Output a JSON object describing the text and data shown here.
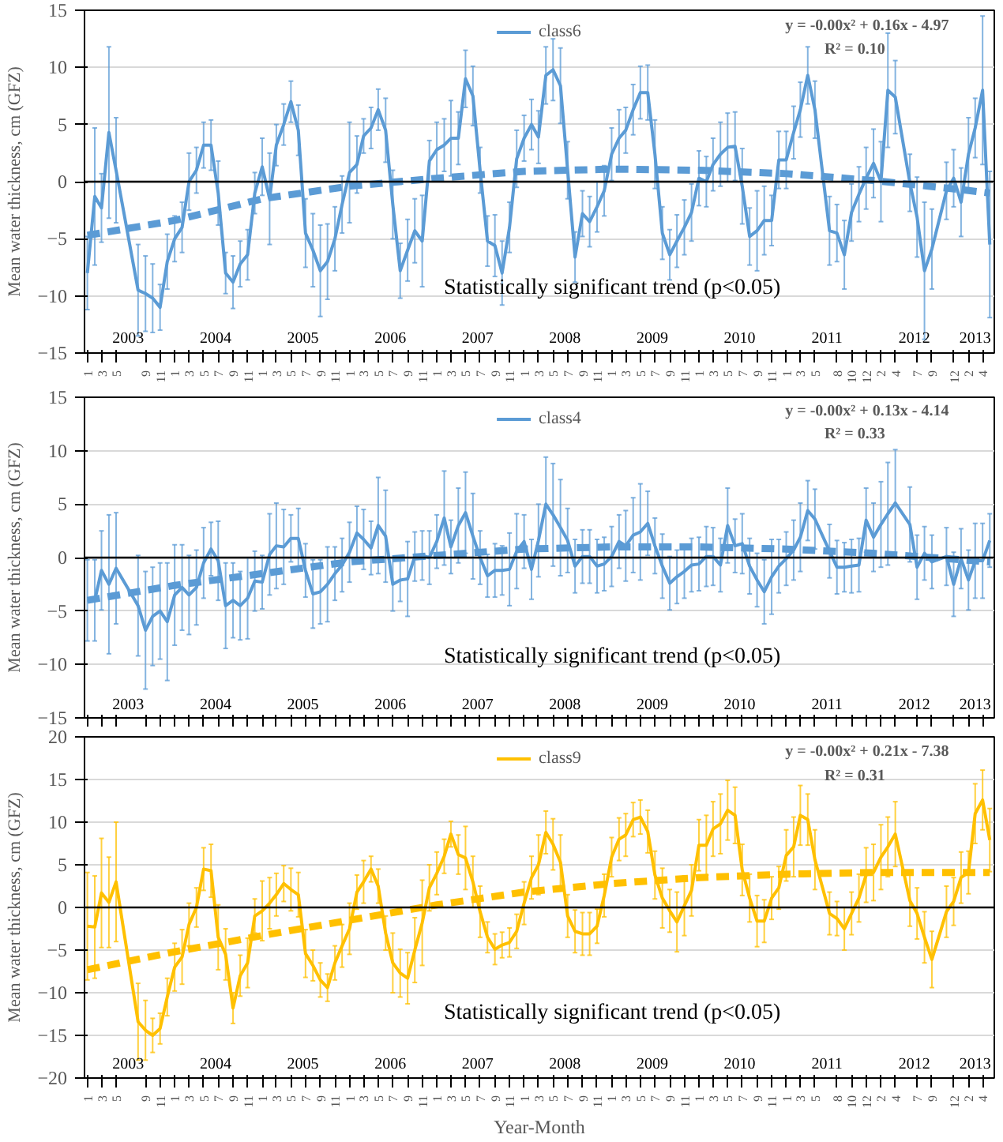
{
  "chart_data": [
    {
      "type": "line",
      "ylabel": "Mean water thickness, cm (GFZ)",
      "xlim": [
        "2002-12-20",
        "2013-05-20"
      ],
      "ylim": [
        -15,
        15
      ],
      "yticks": [
        -15,
        -10,
        -5,
        0,
        5,
        10,
        15
      ],
      "grid": "y",
      "legend": "top",
      "x": [
        "2003-01",
        "2003-02",
        "2003-03",
        "2003-04",
        "2003-05",
        "2003-08",
        "2003-09",
        "2003-10",
        "2003-11",
        "2003-12",
        "2004-01",
        "2004-02",
        "2004-03",
        "2004-04",
        "2004-05",
        "2004-06",
        "2004-07",
        "2004-08",
        "2004-09",
        "2004-10",
        "2004-11",
        "2004-12",
        "2005-01",
        "2005-02",
        "2005-03",
        "2005-04",
        "2005-05",
        "2005-06",
        "2005-07",
        "2005-08",
        "2005-09",
        "2005-10",
        "2005-11",
        "2005-12",
        "2006-01",
        "2006-02",
        "2006-03",
        "2006-04",
        "2006-05",
        "2006-06",
        "2006-07",
        "2006-08",
        "2006-09",
        "2006-10",
        "2006-11",
        "2006-12",
        "2007-01",
        "2007-02",
        "2007-03",
        "2007-04",
        "2007-05",
        "2007-06",
        "2007-07",
        "2007-08",
        "2007-09",
        "2007-10",
        "2007-11",
        "2007-12",
        "2008-01",
        "2008-02",
        "2008-03",
        "2008-04",
        "2008-05",
        "2008-06",
        "2008-07",
        "2008-08",
        "2008-09",
        "2008-10",
        "2008-11",
        "2008-12",
        "2009-01",
        "2009-02",
        "2009-03",
        "2009-04",
        "2009-05",
        "2009-06",
        "2009-07",
        "2009-08",
        "2009-09",
        "2009-10",
        "2009-11",
        "2009-12",
        "2010-01",
        "2010-02",
        "2010-03",
        "2010-04",
        "2010-05",
        "2010-06",
        "2010-07",
        "2010-08",
        "2010-09",
        "2010-10",
        "2010-11",
        "2010-12",
        "2011-01",
        "2011-02",
        "2011-03",
        "2011-04",
        "2011-05",
        "2011-07",
        "2011-08",
        "2011-09",
        "2011-10",
        "2011-11",
        "2011-12",
        "2012-01",
        "2012-02",
        "2012-03",
        "2012-04",
        "2012-06",
        "2012-07",
        "2012-08",
        "2012-09",
        "2012-11",
        "2012-12",
        "2013-01",
        "2013-02",
        "2013-03",
        "2013-04",
        "2013-05"
      ],
      "xticks": [
        {
          "value": "2003-01",
          "label": "1"
        },
        {
          "value": "2003-03",
          "label": "3"
        },
        {
          "value": "2003-05",
          "label": "5"
        },
        {
          "value": "2003-09",
          "label": "9"
        },
        {
          "value": "2003-11",
          "label": "11"
        },
        {
          "value": "2004-01",
          "label": "1"
        },
        {
          "value": "2004-03",
          "label": "3"
        },
        {
          "value": "2004-05",
          "label": "5"
        },
        {
          "value": "2004-07",
          "label": "7"
        },
        {
          "value": "2004-09",
          "label": "9"
        },
        {
          "value": "2004-11",
          "label": "11"
        },
        {
          "value": "2005-01",
          "label": "1"
        },
        {
          "value": "2005-03",
          "label": "3"
        },
        {
          "value": "2005-05",
          "label": "5"
        },
        {
          "value": "2005-07",
          "label": "7"
        },
        {
          "value": "2005-09",
          "label": "9"
        },
        {
          "value": "2005-11",
          "label": "11"
        },
        {
          "value": "2006-01",
          "label": "1"
        },
        {
          "value": "2006-03",
          "label": "3"
        },
        {
          "value": "2006-05",
          "label": "5"
        },
        {
          "value": "2006-07",
          "label": "7"
        },
        {
          "value": "2006-09",
          "label": "9"
        },
        {
          "value": "2006-11",
          "label": "11"
        },
        {
          "value": "2007-01",
          "label": "1"
        },
        {
          "value": "2007-03",
          "label": "3"
        },
        {
          "value": "2007-05",
          "label": "5"
        },
        {
          "value": "2007-07",
          "label": "7"
        },
        {
          "value": "2007-09",
          "label": "9"
        },
        {
          "value": "2007-11",
          "label": "11"
        },
        {
          "value": "2008-01",
          "label": "1"
        },
        {
          "value": "2008-03",
          "label": "3"
        },
        {
          "value": "2008-05",
          "label": "5"
        },
        {
          "value": "2008-07",
          "label": "7"
        },
        {
          "value": "2008-09",
          "label": "9"
        },
        {
          "value": "2008-11",
          "label": "11"
        },
        {
          "value": "2009-01",
          "label": "1"
        },
        {
          "value": "2009-03",
          "label": "3"
        },
        {
          "value": "2009-05",
          "label": "5"
        },
        {
          "value": "2009-07",
          "label": "7"
        },
        {
          "value": "2009-09",
          "label": "9"
        },
        {
          "value": "2009-11",
          "label": "11"
        },
        {
          "value": "2010-01",
          "label": "1"
        },
        {
          "value": "2010-03",
          "label": "3"
        },
        {
          "value": "2010-05",
          "label": "5"
        },
        {
          "value": "2010-07",
          "label": "7"
        },
        {
          "value": "2010-09",
          "label": "9"
        },
        {
          "value": "2010-11",
          "label": "11"
        },
        {
          "value": "2011-01",
          "label": "1"
        },
        {
          "value": "2011-03",
          "label": "3"
        },
        {
          "value": "2011-05",
          "label": "5"
        },
        {
          "value": "2011-08",
          "label": "8"
        },
        {
          "value": "2011-10",
          "label": "10"
        },
        {
          "value": "2011-12",
          "label": "12"
        },
        {
          "value": "2012-02",
          "label": "2"
        },
        {
          "value": "2012-04",
          "label": "4"
        },
        {
          "value": "2012-07",
          "label": "7"
        },
        {
          "value": "2012-09",
          "label": "9"
        },
        {
          "value": "2012-12",
          "label": "12"
        },
        {
          "value": "2013-02",
          "label": "2"
        },
        {
          "value": "2013-04",
          "label": "4"
        }
      ],
      "series": [
        {
          "name": "class6",
          "color": "#5b9bd5",
          "line_style": "solid",
          "values": [
            -8,
            -1.3,
            -2.3,
            4.3,
            1,
            -9.5,
            -9.8,
            -10.2,
            -11,
            -7,
            -5,
            -4,
            0,
            1,
            3.2,
            3.2,
            -1,
            -8,
            -8.8,
            -7.2,
            -6.4,
            -1,
            1.3,
            -1.5,
            3.2,
            5,
            7,
            4.5,
            -4.5,
            -6,
            -7.8,
            -7,
            -5,
            -2,
            0.8,
            1.5,
            4,
            4.7,
            6.3,
            4.5,
            -2,
            -7.8,
            -6,
            -4.3,
            -5.2,
            1.8,
            2.8,
            3.2,
            3.8,
            3.8,
            9,
            7.5,
            1,
            -5.2,
            -5.6,
            -8,
            -4,
            2,
            3.8,
            5,
            3.9,
            9.3,
            9.8,
            8.4,
            1,
            -6.6,
            -2.8,
            -3.5,
            -2.2,
            -0.8,
            2.4,
            3.8,
            4.5,
            6.3,
            7.8,
            7.8,
            2.4,
            -4.5,
            -6.4,
            -5.2,
            -4,
            -2.7,
            0.3,
            0,
            1.5,
            2.4,
            3,
            3.1,
            -0.4,
            -4.8,
            -4.3,
            -3.4,
            -3.4,
            1.9,
            1.9,
            4.3,
            6.3,
            9.3,
            6.3,
            -4.3,
            -4.5,
            -6.4,
            -2.7,
            -1.1,
            0.3,
            1.6,
            0,
            8,
            7.4,
            -0.1,
            -3.1,
            -7.8,
            -5.9,
            -0.8,
            0.3,
            -1.8,
            2.4,
            4.7,
            8,
            -5.5
          ],
          "errors": [
            3.2,
            6,
            3,
            7.5,
            4.6,
            4,
            3.3,
            3,
            2,
            2.4,
            2,
            2.2,
            2.5,
            2,
            2,
            2.2,
            2.8,
            1.8,
            2.3,
            2,
            2.2,
            1.8,
            2.5,
            4,
            1.8,
            1.8,
            1.8,
            2.2,
            3,
            3.2,
            4,
            3.3,
            2.8,
            2.5,
            4.4,
            2.5,
            1.5,
            1.8,
            1.8,
            2.8,
            3,
            2.4,
            2.7,
            2.8,
            4,
            1.8,
            2.4,
            2.3,
            3.3,
            2.3,
            2.5,
            2.6,
            2,
            2.2,
            2.7,
            2.8,
            2.2,
            2.5,
            2,
            2.2,
            2.3,
            2.5,
            2.7,
            3.3,
            2.5,
            2.2,
            2,
            2.2,
            2.2,
            2.2,
            2.3,
            2.5,
            2,
            2.2,
            2.3,
            2.4,
            3,
            2.3,
            2.2,
            2.3,
            2.4,
            2.5,
            2.4,
            2.2,
            2.3,
            2.8,
            3,
            3,
            3.3,
            2.5,
            3.5,
            3,
            2.2,
            2.5,
            2.5,
            2.3,
            2.4,
            2.5,
            2.5,
            3,
            2.5,
            3,
            2.5,
            2.4,
            2.7,
            3,
            3.5,
            5,
            3.2,
            2.5,
            3.5,
            6,
            3.5,
            2.5,
            2.5,
            3,
            3.2,
            2.6,
            6.5,
            6.4
          ]
        },
        {
          "type": "line",
          "color": "#5b9bd5",
          "line_style": "dashed",
          "x": [
            "2003-01",
            "2004-01",
            "2005-01",
            "2006-01",
            "2007-01",
            "2008-01",
            "2009-01",
            "2010-01",
            "2011-01",
            "2012-01",
            "2013-01",
            "2013-05"
          ],
          "values": [
            -4.7,
            -3.4,
            -1.5,
            -0.4,
            0.3,
            0.9,
            1.1,
            1.0,
            0.7,
            0.1,
            -0.7,
            -1.0
          ]
        }
      ],
      "ref_lines": [
        {
          "axis": "y",
          "value": 0,
          "color": "#000000"
        }
      ],
      "annotations": [
        "y = -0.00x² + 0.16x - 4.97",
        "R² = 0.10",
        "Statistically significant trend (p<0.05)",
        "2003",
        "2004",
        "2005",
        "2006",
        "2007",
        "2008",
        "2009",
        "2010",
        "2011",
        "2012",
        "2013"
      ]
    },
    {
      "type": "line",
      "ylabel": "Mean water thickness, cm (GFZ)",
      "xlim": [
        "2002-12-20",
        "2013-05-20"
      ],
      "ylim": [
        -15,
        15
      ],
      "yticks": [
        -15,
        -10,
        -5,
        0,
        5,
        10,
        15
      ],
      "grid": "y",
      "legend": "top",
      "x": [
        "2003-01",
        "2003-02",
        "2003-03",
        "2003-04",
        "2003-05",
        "2003-08",
        "2003-09",
        "2003-10",
        "2003-11",
        "2003-12",
        "2004-01",
        "2004-02",
        "2004-03",
        "2004-04",
        "2004-05",
        "2004-06",
        "2004-07",
        "2004-08",
        "2004-09",
        "2004-10",
        "2004-11",
        "2004-12",
        "2005-01",
        "2005-02",
        "2005-03",
        "2005-04",
        "2005-05",
        "2005-06",
        "2005-07",
        "2005-08",
        "2005-09",
        "2005-10",
        "2005-11",
        "2005-12",
        "2006-01",
        "2006-02",
        "2006-03",
        "2006-04",
        "2006-05",
        "2006-06",
        "2006-07",
        "2006-08",
        "2006-09",
        "2006-10",
        "2006-11",
        "2006-12",
        "2007-01",
        "2007-02",
        "2007-03",
        "2007-04",
        "2007-05",
        "2007-06",
        "2007-07",
        "2007-08",
        "2007-09",
        "2007-10",
        "2007-11",
        "2007-12",
        "2008-01",
        "2008-02",
        "2008-03",
        "2008-04",
        "2008-05",
        "2008-06",
        "2008-07",
        "2008-08",
        "2008-09",
        "2008-10",
        "2008-11",
        "2008-12",
        "2009-01",
        "2009-02",
        "2009-03",
        "2009-04",
        "2009-05",
        "2009-06",
        "2009-07",
        "2009-08",
        "2009-09",
        "2009-10",
        "2009-11",
        "2009-12",
        "2010-01",
        "2010-02",
        "2010-03",
        "2010-04",
        "2010-05",
        "2010-06",
        "2010-07",
        "2010-08",
        "2010-09",
        "2010-10",
        "2010-11",
        "2010-12",
        "2011-01",
        "2011-02",
        "2011-03",
        "2011-04",
        "2011-05",
        "2011-07",
        "2011-08",
        "2011-09",
        "2011-10",
        "2011-11",
        "2011-12",
        "2012-01",
        "2012-02",
        "2012-03",
        "2012-04",
        "2012-06",
        "2012-07",
        "2012-08",
        "2012-09",
        "2012-11",
        "2012-12",
        "2013-01",
        "2013-02",
        "2013-03",
        "2013-04",
        "2013-05"
      ],
      "xticks": [
        {
          "value": "2003-01",
          "label": null
        },
        {
          "value": "2003-03",
          "label": null
        },
        {
          "value": "2003-05",
          "label": null
        },
        {
          "value": "2003-09",
          "label": null
        },
        {
          "value": "2003-11",
          "label": null
        },
        {
          "value": "2004-01",
          "label": null
        },
        {
          "value": "2004-03",
          "label": null
        },
        {
          "value": "2004-05",
          "label": null
        },
        {
          "value": "2004-07",
          "label": null
        },
        {
          "value": "2004-09",
          "label": null
        },
        {
          "value": "2004-11",
          "label": null
        },
        {
          "value": "2005-01",
          "label": null
        },
        {
          "value": "2005-03",
          "label": null
        },
        {
          "value": "2005-05",
          "label": null
        },
        {
          "value": "2005-07",
          "label": null
        },
        {
          "value": "2005-09",
          "label": null
        },
        {
          "value": "2005-11",
          "label": null
        },
        {
          "value": "2006-01",
          "label": null
        },
        {
          "value": "2006-03",
          "label": null
        },
        {
          "value": "2006-05",
          "label": null
        },
        {
          "value": "2006-07",
          "label": null
        },
        {
          "value": "2006-09",
          "label": null
        },
        {
          "value": "2006-11",
          "label": null
        },
        {
          "value": "2007-01",
          "label": null
        },
        {
          "value": "2007-03",
          "label": null
        },
        {
          "value": "2007-05",
          "label": null
        },
        {
          "value": "2007-07",
          "label": null
        },
        {
          "value": "2007-09",
          "label": null
        },
        {
          "value": "2007-11",
          "label": null
        },
        {
          "value": "2008-01",
          "label": null
        },
        {
          "value": "2008-03",
          "label": null
        },
        {
          "value": "2008-05",
          "label": null
        },
        {
          "value": "2008-07",
          "label": null
        },
        {
          "value": "2008-09",
          "label": null
        },
        {
          "value": "2008-11",
          "label": null
        },
        {
          "value": "2009-01",
          "label": null
        },
        {
          "value": "2009-03",
          "label": null
        },
        {
          "value": "2009-05",
          "label": null
        },
        {
          "value": "2009-07",
          "label": null
        },
        {
          "value": "2009-09",
          "label": null
        },
        {
          "value": "2009-11",
          "label": null
        },
        {
          "value": "2010-01",
          "label": null
        },
        {
          "value": "2010-03",
          "label": null
        },
        {
          "value": "2010-05",
          "label": null
        },
        {
          "value": "2010-07",
          "label": null
        },
        {
          "value": "2010-09",
          "label": null
        },
        {
          "value": "2010-11",
          "label": null
        },
        {
          "value": "2011-01",
          "label": null
        },
        {
          "value": "2011-03",
          "label": null
        },
        {
          "value": "2011-05",
          "label": null
        },
        {
          "value": "2011-08",
          "label": null
        },
        {
          "value": "2011-10",
          "label": null
        },
        {
          "value": "2011-12",
          "label": null
        },
        {
          "value": "2012-02",
          "label": null
        },
        {
          "value": "2012-04",
          "label": null
        },
        {
          "value": "2012-07",
          "label": null
        },
        {
          "value": "2012-09",
          "label": null
        },
        {
          "value": "2012-12",
          "label": null
        },
        {
          "value": "2013-02",
          "label": null
        },
        {
          "value": "2013-04",
          "label": null
        }
      ],
      "tick_labels": "y",
      "series": [
        {
          "name": "class4",
          "color": "#5b9bd5",
          "line_style": "solid",
          "values": [
            -4,
            -4,
            -1.2,
            -2.5,
            -1,
            -4.5,
            -6.8,
            -5.5,
            -5,
            -6,
            -3.5,
            -2.8,
            -3.5,
            -2.8,
            -0.5,
            0.8,
            -0.3,
            -4.5,
            -4,
            -4.5,
            -3.8,
            -2.2,
            -2.3,
            0.3,
            1.1,
            1,
            1.8,
            1.8,
            -1.2,
            -3.4,
            -3.2,
            -2.5,
            -1.5,
            -0.7,
            0.5,
            2.3,
            1.7,
            0.9,
            3,
            2,
            -2.5,
            -2.1,
            -2,
            0.1,
            0.2,
            0,
            1.5,
            3.7,
            1,
            3,
            4.2,
            2,
            0,
            -1.7,
            -1.2,
            -1.2,
            -1.1,
            0.6,
            1.5,
            -1.1,
            1.6,
            5,
            4,
            2.8,
            1.6,
            -0.8,
            0.1,
            0.1,
            -0.8,
            -0.6,
            0.1,
            1.5,
            1.1,
            2.1,
            2.4,
            3.2,
            1.1,
            -0.8,
            -2.4,
            -1.8,
            -1.3,
            -0.7,
            -0.6,
            0.1,
            0.1,
            -0.7,
            3,
            1.1,
            1.3,
            -0.8,
            -2.1,
            -3.2,
            -1.8,
            -0.8,
            -0.1,
            0.7,
            1.9,
            4.4,
            3.6,
            0.6,
            -0.9,
            -0.9,
            -0.8,
            -0.7,
            3.5,
            1.9,
            3.1,
            4.1,
            5.1,
            3.1,
            -0.9,
            0.4,
            -0.4,
            0.1,
            -2.5,
            -0.1,
            -2.1,
            -0.3,
            -0.3,
            1.6
          ],
          "errors": [
            3.8,
            3.8,
            3.7,
            6.5,
            5.2,
            4.7,
            5.5,
            4.6,
            4.5,
            5.5,
            4.7,
            4,
            3.7,
            3.5,
            3.3,
            2.5,
            3.7,
            4,
            3.5,
            3.2,
            3.8,
            2.8,
            2.5,
            3.8,
            4,
            3.5,
            2.2,
            2.8,
            2.5,
            3.2,
            3,
            3.5,
            2.5,
            2.5,
            2.8,
            2.5,
            2.8,
            2.5,
            4.5,
            4.3,
            2.5,
            2,
            3.5,
            2.3,
            2.3,
            2.5,
            2.5,
            4.4,
            2.5,
            3.5,
            3.8,
            4,
            2.5,
            2,
            2.5,
            2.3,
            3.4,
            3.5,
            2.5,
            2.8,
            3.4,
            4.4,
            4.8,
            4.5,
            3,
            2.5,
            2.5,
            2.5,
            2.5,
            2.5,
            2.8,
            2.5,
            3.3,
            3.5,
            4.5,
            3,
            2.6,
            3,
            2.5,
            2.5,
            2.5,
            2.5,
            2.5,
            2.8,
            2.7,
            2.5,
            3.5,
            2.5,
            2.8,
            2.6,
            2.5,
            3,
            3.5,
            2.5,
            2.5,
            2.8,
            3.2,
            2.8,
            2.8,
            2.5,
            2.5,
            2.3,
            2.5,
            2.5,
            3,
            3.2,
            4,
            4.8,
            5,
            3.5,
            3,
            2.5,
            2.5,
            2.7,
            3,
            2.8,
            2.8,
            3.5,
            3.5,
            2.5
          ]
        },
        {
          "type": "line",
          "color": "#5b9bd5",
          "line_style": "dashed",
          "x": [
            "2003-01",
            "2004-01",
            "2005-01",
            "2006-01",
            "2007-01",
            "2008-01",
            "2009-01",
            "2010-01",
            "2011-01",
            "2012-01",
            "2013-01",
            "2013-05"
          ],
          "values": [
            -4.0,
            -2.6,
            -1.5,
            -0.4,
            0.2,
            0.8,
            1.0,
            1.0,
            0.8,
            0.4,
            -0.2,
            -0.4
          ]
        }
      ],
      "ref_lines": [
        {
          "axis": "y",
          "value": 0,
          "color": "#000000"
        }
      ],
      "annotations": [
        "y = -0.00x² + 0.13x - 4.14",
        "R² = 0.33",
        "Statistically significant trend (p<0.05)",
        "2003",
        "2004",
        "2005",
        "2006",
        "2007",
        "2008",
        "2009",
        "2010",
        "2011",
        "2012",
        "2013"
      ]
    },
    {
      "type": "line",
      "xlabel": "Year-Month",
      "ylabel": "Mean water thickness, cm (GFZ)",
      "xlim": [
        "2002-12-20",
        "2013-05-20"
      ],
      "ylim": [
        -20,
        20
      ],
      "yticks": [
        -20,
        -15,
        -10,
        -5,
        0,
        5,
        10,
        15,
        20
      ],
      "grid": "y",
      "legend": "top",
      "x": [
        "2003-01",
        "2003-02",
        "2003-03",
        "2003-04",
        "2003-05",
        "2003-08",
        "2003-09",
        "2003-10",
        "2003-11",
        "2003-12",
        "2004-01",
        "2004-02",
        "2004-03",
        "2004-04",
        "2004-05",
        "2004-06",
        "2004-07",
        "2004-08",
        "2004-09",
        "2004-10",
        "2004-11",
        "2004-12",
        "2005-01",
        "2005-02",
        "2005-03",
        "2005-04",
        "2005-05",
        "2005-06",
        "2005-07",
        "2005-08",
        "2005-09",
        "2005-10",
        "2005-11",
        "2005-12",
        "2006-01",
        "2006-02",
        "2006-03",
        "2006-04",
        "2006-05",
        "2006-06",
        "2006-07",
        "2006-08",
        "2006-09",
        "2006-10",
        "2006-11",
        "2006-12",
        "2007-01",
        "2007-02",
        "2007-03",
        "2007-04",
        "2007-05",
        "2007-06",
        "2007-07",
        "2007-08",
        "2007-09",
        "2007-10",
        "2007-11",
        "2007-12",
        "2008-01",
        "2008-02",
        "2008-03",
        "2008-04",
        "2008-05",
        "2008-06",
        "2008-07",
        "2008-08",
        "2008-09",
        "2008-10",
        "2008-11",
        "2008-12",
        "2009-01",
        "2009-02",
        "2009-03",
        "2009-04",
        "2009-05",
        "2009-06",
        "2009-07",
        "2009-08",
        "2009-09",
        "2009-10",
        "2009-11",
        "2009-12",
        "2010-01",
        "2010-02",
        "2010-03",
        "2010-04",
        "2010-05",
        "2010-06",
        "2010-07",
        "2010-08",
        "2010-09",
        "2010-10",
        "2010-11",
        "2010-12",
        "2011-01",
        "2011-02",
        "2011-03",
        "2011-04",
        "2011-05",
        "2011-07",
        "2011-08",
        "2011-09",
        "2011-10",
        "2011-11",
        "2011-12",
        "2012-01",
        "2012-02",
        "2012-03",
        "2012-04",
        "2012-06",
        "2012-07",
        "2012-08",
        "2012-09",
        "2012-11",
        "2012-12",
        "2013-01",
        "2013-02",
        "2013-03",
        "2013-04",
        "2013-05"
      ],
      "xticks": [
        {
          "value": "2003-01",
          "label": "1"
        },
        {
          "value": "2003-03",
          "label": "3"
        },
        {
          "value": "2003-05",
          "label": "5"
        },
        {
          "value": "2003-09",
          "label": "9"
        },
        {
          "value": "2003-11",
          "label": "11"
        },
        {
          "value": "2004-01",
          "label": "1"
        },
        {
          "value": "2004-03",
          "label": "3"
        },
        {
          "value": "2004-05",
          "label": "5"
        },
        {
          "value": "2004-07",
          "label": "7"
        },
        {
          "value": "2004-09",
          "label": "9"
        },
        {
          "value": "2004-11",
          "label": "11"
        },
        {
          "value": "2005-01",
          "label": "1"
        },
        {
          "value": "2005-03",
          "label": "3"
        },
        {
          "value": "2005-05",
          "label": "5"
        },
        {
          "value": "2005-07",
          "label": "7"
        },
        {
          "value": "2005-09",
          "label": "9"
        },
        {
          "value": "2005-11",
          "label": "11"
        },
        {
          "value": "2006-01",
          "label": "1"
        },
        {
          "value": "2006-03",
          "label": "3"
        },
        {
          "value": "2006-05",
          "label": "5"
        },
        {
          "value": "2006-07",
          "label": "7"
        },
        {
          "value": "2006-09",
          "label": "9"
        },
        {
          "value": "2006-11",
          "label": "11"
        },
        {
          "value": "2007-01",
          "label": "1"
        },
        {
          "value": "2007-03",
          "label": "3"
        },
        {
          "value": "2007-05",
          "label": "5"
        },
        {
          "value": "2007-07",
          "label": "7"
        },
        {
          "value": "2007-09",
          "label": "9"
        },
        {
          "value": "2007-11",
          "label": "11"
        },
        {
          "value": "2008-01",
          "label": "1"
        },
        {
          "value": "2008-03",
          "label": "3"
        },
        {
          "value": "2008-05",
          "label": "5"
        },
        {
          "value": "2008-07",
          "label": "7"
        },
        {
          "value": "2008-09",
          "label": "9"
        },
        {
          "value": "2008-11",
          "label": "11"
        },
        {
          "value": "2009-01",
          "label": "1"
        },
        {
          "value": "2009-03",
          "label": "3"
        },
        {
          "value": "2009-05",
          "label": "5"
        },
        {
          "value": "2009-07",
          "label": "7"
        },
        {
          "value": "2009-09",
          "label": "9"
        },
        {
          "value": "2009-11",
          "label": "11"
        },
        {
          "value": "2010-01",
          "label": "1"
        },
        {
          "value": "2010-03",
          "label": "3"
        },
        {
          "value": "2010-05",
          "label": "5"
        },
        {
          "value": "2010-07",
          "label": "7"
        },
        {
          "value": "2010-09",
          "label": "9"
        },
        {
          "value": "2010-11",
          "label": "11"
        },
        {
          "value": "2011-01",
          "label": "1"
        },
        {
          "value": "2011-03",
          "label": "3"
        },
        {
          "value": "2011-05",
          "label": "5"
        },
        {
          "value": "2011-08",
          "label": "8"
        },
        {
          "value": "2011-10",
          "label": "10"
        },
        {
          "value": "2011-12",
          "label": "12"
        },
        {
          "value": "2012-02",
          "label": "2"
        },
        {
          "value": "2012-04",
          "label": "4"
        },
        {
          "value": "2012-07",
          "label": "7"
        },
        {
          "value": "2012-09",
          "label": "9"
        },
        {
          "value": "2012-12",
          "label": "12"
        },
        {
          "value": "2013-02",
          "label": "2"
        },
        {
          "value": "2013-04",
          "label": "4"
        }
      ],
      "series": [
        {
          "name": "class9",
          "color": "#ffc000",
          "line_style": "solid",
          "values": [
            -2.2,
            -2.3,
            1.7,
            0.6,
            3,
            -13.4,
            -14.4,
            -15,
            -14.2,
            -10.5,
            -7,
            -5.8,
            -2,
            0,
            4.5,
            4.3,
            -3.5,
            -5.5,
            -11.8,
            -8,
            -6.5,
            -1,
            -0.4,
            0.5,
            1.5,
            2.8,
            2.1,
            1.5,
            -5.4,
            -6.8,
            -8.5,
            -9.4,
            -6.5,
            -4.5,
            -2.5,
            1.8,
            3,
            4.5,
            2.5,
            -3,
            -6.5,
            -7.7,
            -8.3,
            -5,
            -1.8,
            2.3,
            4,
            6,
            8.6,
            6.2,
            5.8,
            3,
            -0.5,
            -3.5,
            -4.9,
            -4.4,
            -4.1,
            -2.8,
            0.5,
            3.5,
            5,
            8.8,
            7.4,
            5.3,
            -1,
            -2.8,
            -3.1,
            -3.1,
            -2.2,
            1.4,
            5.9,
            8,
            8.5,
            10.3,
            10.6,
            8.9,
            3.8,
            1.1,
            -0.4,
            -1.7,
            0.2,
            2,
            7.3,
            7.3,
            9.2,
            9.8,
            11.4,
            10.8,
            4.4,
            1.1,
            -1.6,
            -1.6,
            1.1,
            2.3,
            6.1,
            7.1,
            10.8,
            10.3,
            5.6,
            -0.7,
            -1.3,
            -2.5,
            -0.7,
            1.1,
            3.8,
            4.1,
            5.9,
            7.1,
            8.6,
            0.8,
            -0.7,
            -3.5,
            -6.1,
            -0.5,
            0.7,
            3.5,
            4.1,
            11,
            12.6,
            7.9
          ],
          "errors": [
            6.3,
            6,
            6.4,
            5.3,
            7,
            4.5,
            3.5,
            2,
            1.8,
            2.2,
            2.8,
            3.2,
            2.5,
            2.3,
            2.5,
            3.1,
            3.8,
            3,
            1.8,
            2.4,
            2.9,
            2,
            3.5,
            3,
            2.5,
            2.1,
            2.5,
            2.6,
            2.8,
            1.8,
            2,
            1.6,
            2,
            2.5,
            3,
            2,
            2.5,
            1.5,
            2,
            2,
            3.5,
            2.8,
            3,
            3.8,
            5,
            2.7,
            2.5,
            2,
            1.5,
            2.3,
            3.7,
            3,
            3,
            1.8,
            1.8,
            1.5,
            1.7,
            2,
            2.5,
            2.5,
            3.5,
            2.5,
            3,
            3.2,
            2.5,
            2.5,
            2.5,
            2.5,
            2,
            2.5,
            2.3,
            2.5,
            2.5,
            2,
            2,
            2.5,
            2.8,
            3.5,
            2.5,
            3.5,
            3.5,
            3,
            3,
            3.5,
            3.2,
            3.5,
            3.5,
            3.3,
            3,
            2.8,
            3,
            2.5,
            2.5,
            2.5,
            3,
            3.5,
            3.5,
            3,
            3.5,
            2.5,
            2,
            2.5,
            2.5,
            2.8,
            3.2,
            3.3,
            3.8,
            3.5,
            3.8,
            3,
            3,
            3,
            3.3,
            3,
            2.8,
            3,
            2.5,
            3.5,
            3.5,
            3.7
          ]
        },
        {
          "type": "line",
          "color": "#ffc000",
          "line_style": "dashed",
          "x": [
            "2003-01",
            "2004-01",
            "2005-01",
            "2006-01",
            "2007-01",
            "2008-01",
            "2009-01",
            "2010-01",
            "2011-01",
            "2012-01",
            "2013-01",
            "2013-05"
          ],
          "values": [
            -7.3,
            -5.2,
            -3.3,
            -1.5,
            0.3,
            1.8,
            2.8,
            3.5,
            3.9,
            4.1,
            4.1,
            4.1
          ]
        }
      ],
      "ref_lines": [
        {
          "axis": "y",
          "value": 0,
          "color": "#000000"
        }
      ],
      "annotations": [
        "y = -0.00x² + 0.21x - 7.38",
        "R² = 0.31",
        "Statistically significant trend (p<0.05)",
        "2003",
        "2004",
        "2005",
        "2006",
        "2007",
        "2008",
        "2009",
        "2010",
        "2011",
        "2012",
        "2013"
      ]
    }
  ]
}
